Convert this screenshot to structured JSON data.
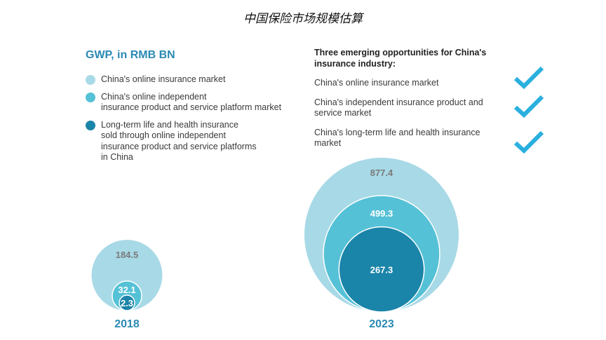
{
  "title": "中国保险市场规模估算",
  "unit_label": "GWP, in RMB BN",
  "legend": [
    {
      "label_lines": [
        "China's online insurance market"
      ],
      "color": "#a8d9e6"
    },
    {
      "label_lines": [
        "China's online independent",
        "insurance product and service platform market"
      ],
      "color": "#55c1d6"
    },
    {
      "label_lines": [
        "Long-term life and health insurance",
        "sold through online independent",
        "insurance product and service platforms",
        "in China"
      ],
      "color": "#1b84a9"
    }
  ],
  "opportunities": {
    "title_lines": [
      "Three emerging opportunities for China's",
      "insurance industry:"
    ],
    "items": [
      {
        "label_lines": [
          "China's online insurance market"
        ],
        "icon": "check-icon"
      },
      {
        "label_lines": [
          "China's independent insurance product and",
          "service market"
        ],
        "icon": "check-icon"
      },
      {
        "label_lines": [
          "China's long-term life and health insurance",
          "market"
        ],
        "icon": "check-icon"
      }
    ],
    "check_color": "#2ab0de"
  },
  "chart_data": {
    "type": "nested-bubble",
    "title": "中国保险市场规模估算",
    "unit": "GWP, in RMB BN",
    "categories": [
      "2018",
      "2023"
    ],
    "series": [
      {
        "name": "China's online insurance market",
        "values": [
          184.5,
          877.4
        ],
        "color": "#a8d9e6"
      },
      {
        "name": "China's online independent insurance product and service platform market",
        "values": [
          32.1,
          499.3
        ],
        "color": "#55c1d6"
      },
      {
        "name": "Long-term life and health insurance sold through online independent insurance product and service platforms in China",
        "values": [
          2.3,
          267.3
        ],
        "color": "#1b84a9"
      }
    ],
    "value_labels": [
      [
        "184.5",
        "32.1",
        "2.3"
      ],
      [
        "877.4",
        "499.3",
        "267.3"
      ]
    ],
    "legend_position": "top-left"
  }
}
